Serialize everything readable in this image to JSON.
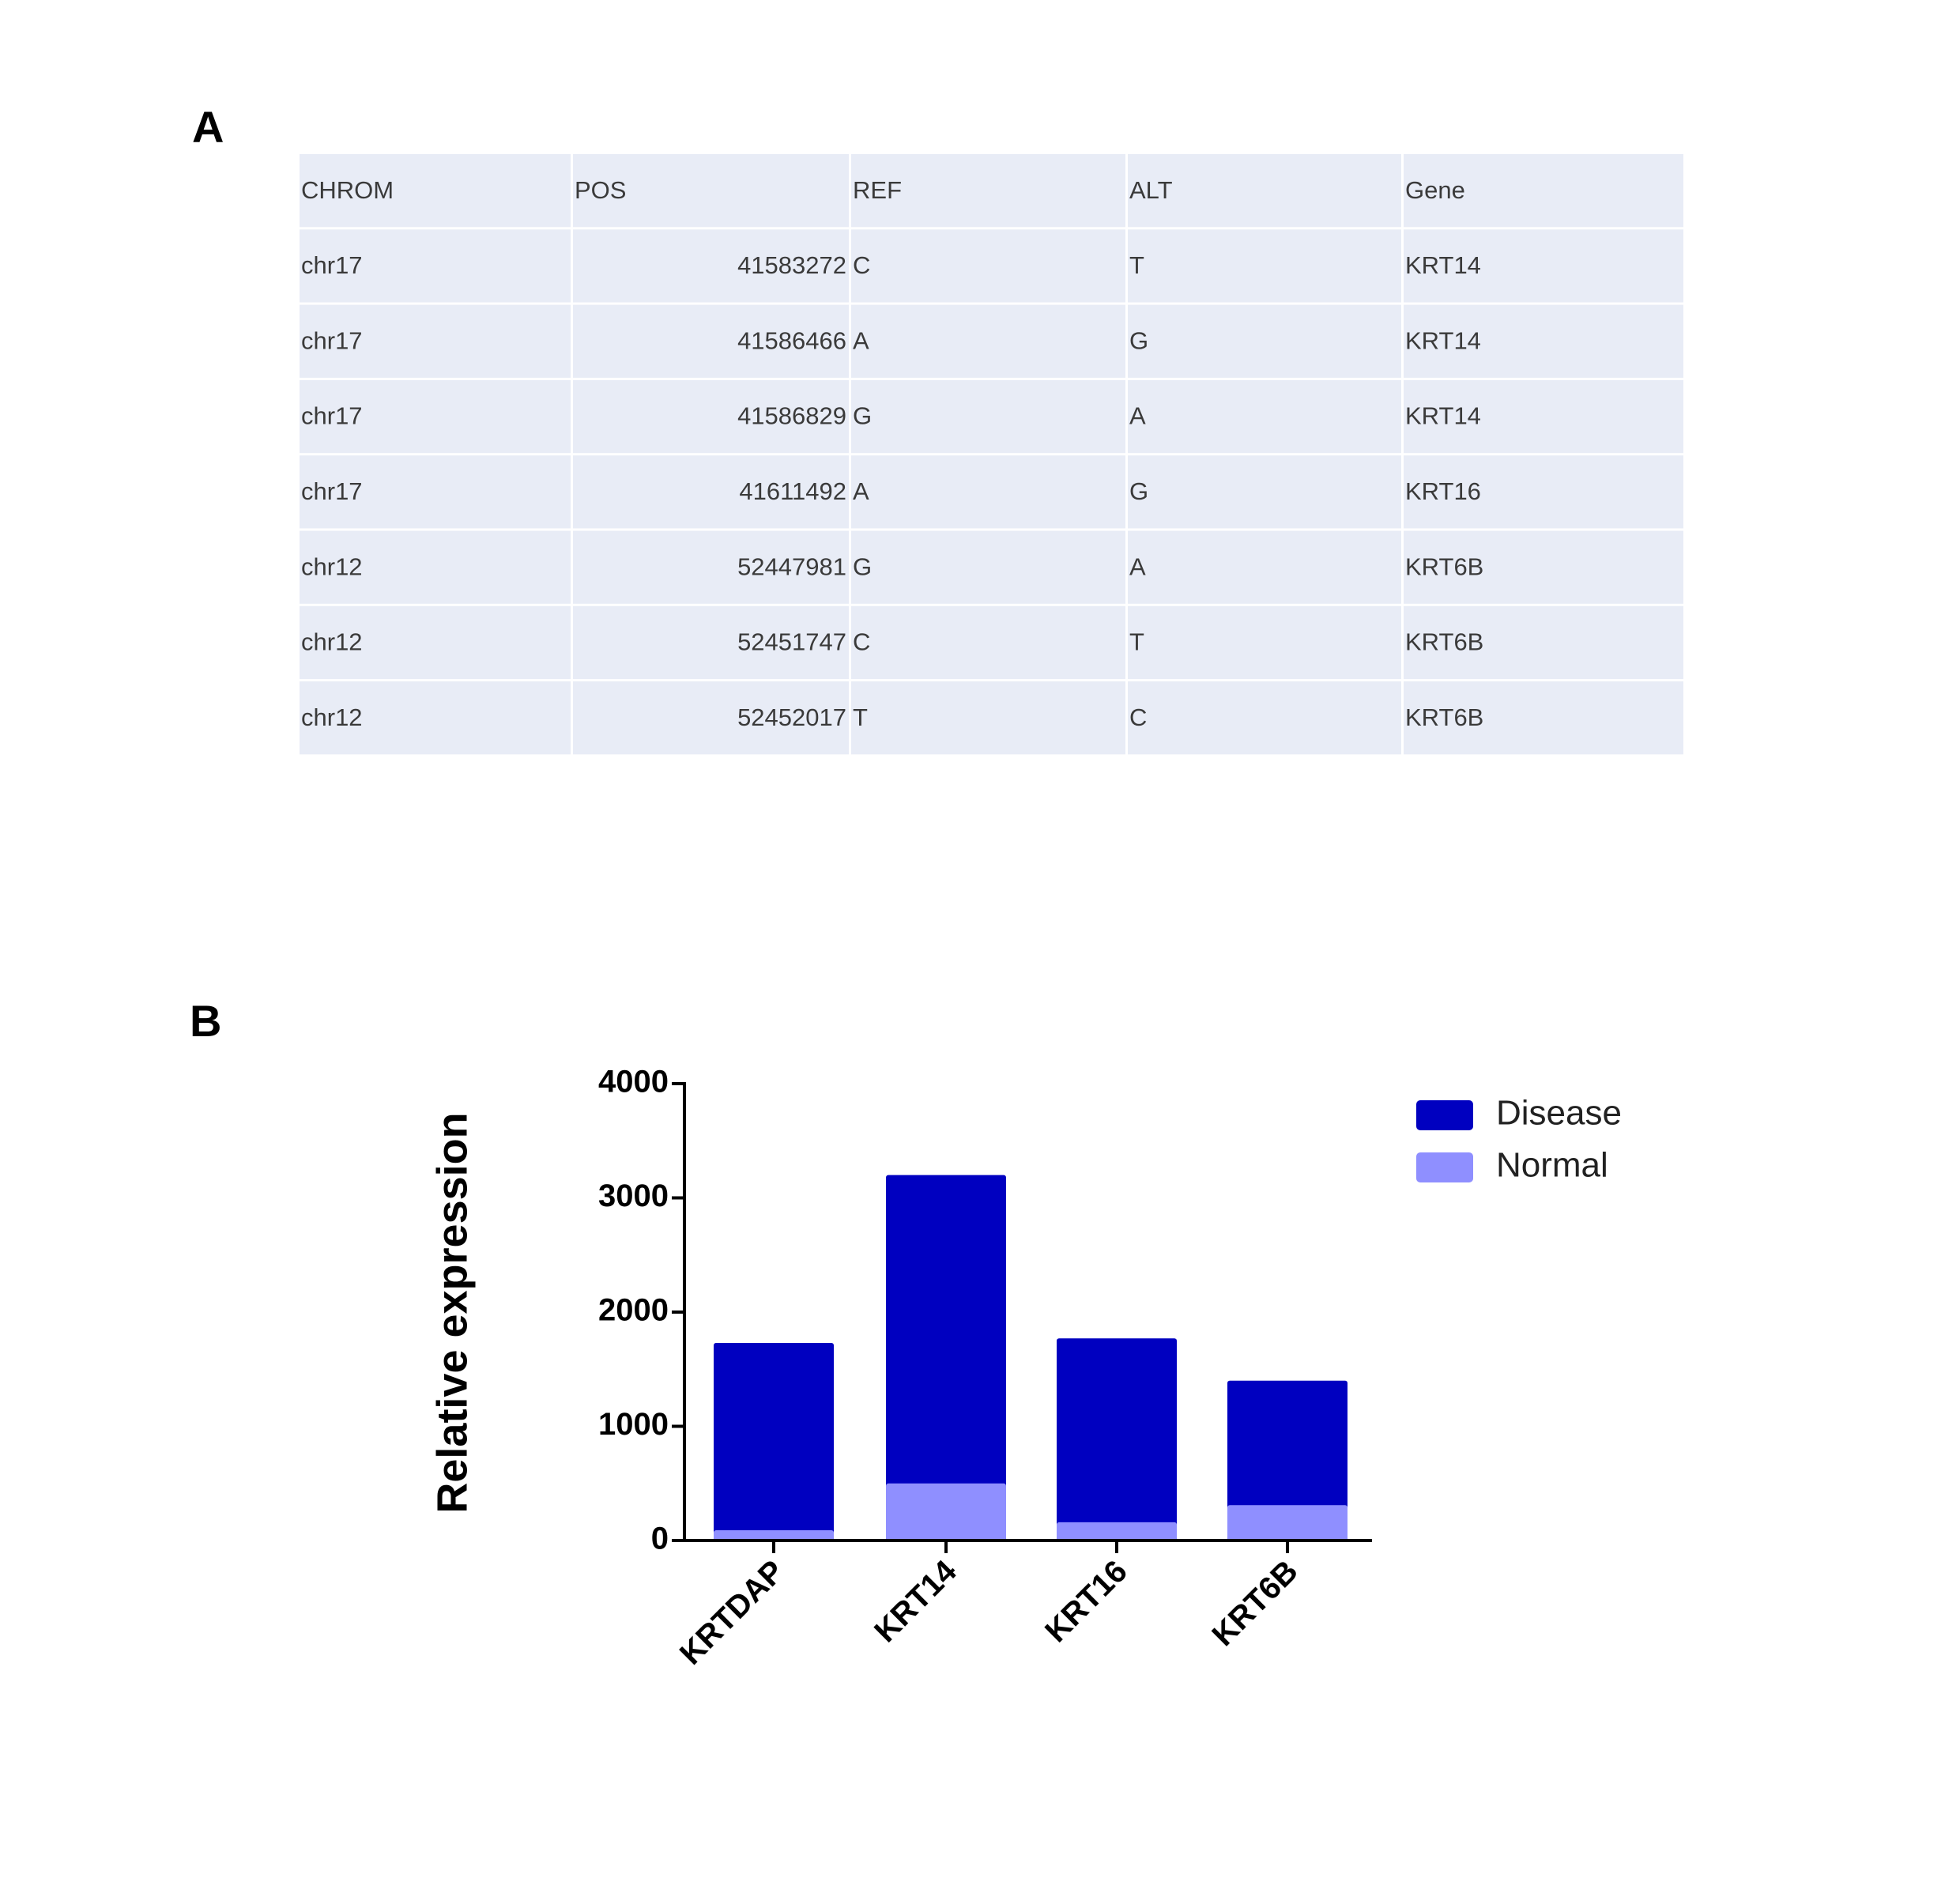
{
  "panel_a": {
    "label": "A",
    "table": {
      "header": [
        "CHROM",
        "POS",
        "REF",
        "ALT",
        "Gene"
      ],
      "rows": [
        [
          "chr17",
          "41583272",
          "C",
          "T",
          "KRT14"
        ],
        [
          "chr17",
          "41586466",
          "A",
          "G",
          "KRT14"
        ],
        [
          "chr17",
          "41586829",
          "G",
          "A",
          "KRT14"
        ],
        [
          "chr17",
          "41611492",
          "A",
          "G",
          "KRT16"
        ],
        [
          "chr12",
          "52447981",
          "G",
          "A",
          "KRT6B"
        ],
        [
          "chr12",
          "52451747",
          "C",
          "T",
          "KRT6B"
        ],
        [
          "chr12",
          "52452017",
          "T",
          "C",
          "KRT6B"
        ]
      ]
    }
  },
  "panel_b_label": "B",
  "chart_data": {
    "type": "bar",
    "ylabel": "Relative expression",
    "categories": [
      "KRTDAP",
      "KRT14",
      "KRT16",
      "KRT6B"
    ],
    "series": [
      {
        "name": "Disease",
        "color": "#0000c0",
        "values": [
          1730,
          3200,
          1770,
          1400
        ]
      },
      {
        "name": "Normal",
        "color": "#8f8fff",
        "values": [
          90,
          500,
          160,
          310
        ]
      }
    ],
    "ylim": [
      0,
      4000
    ],
    "yticks": [
      0,
      1000,
      2000,
      3000,
      4000
    ],
    "legend": "upper right"
  }
}
